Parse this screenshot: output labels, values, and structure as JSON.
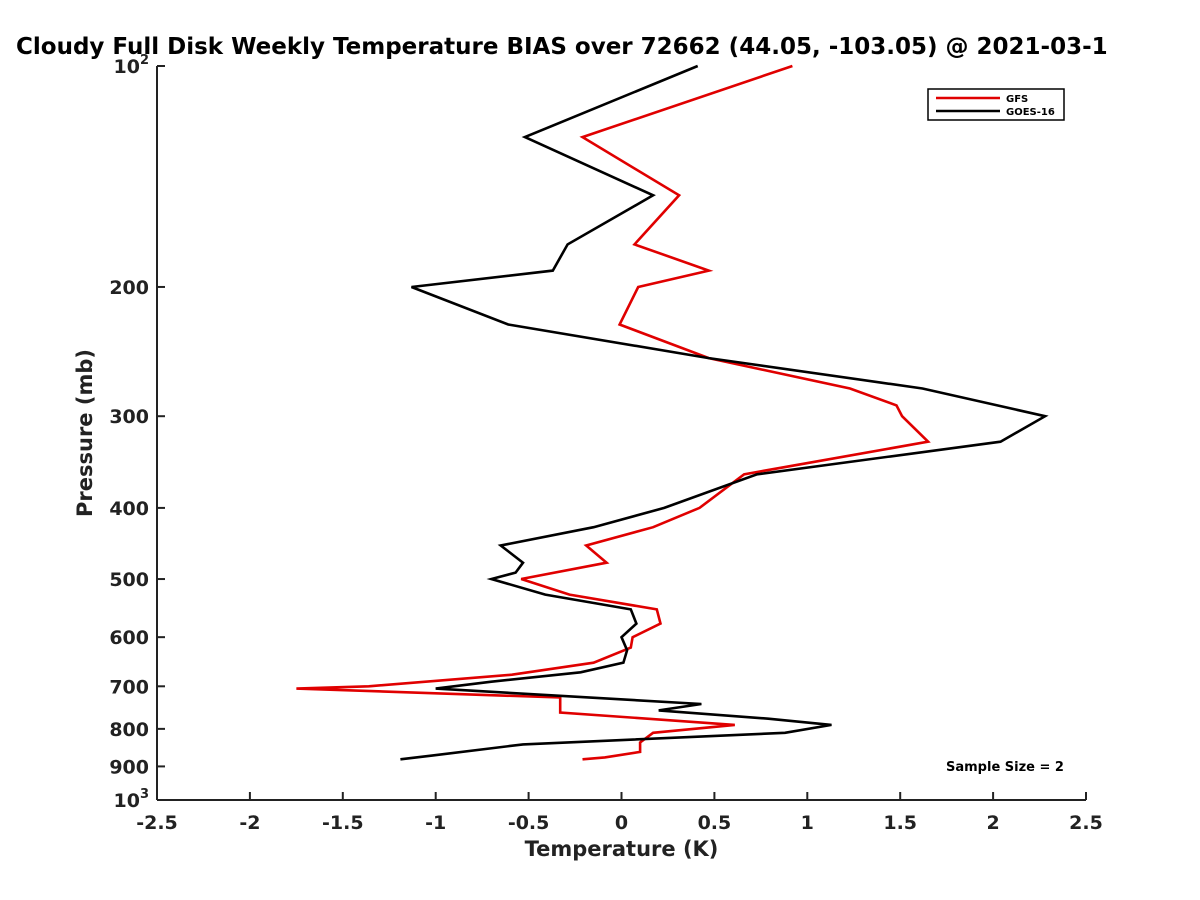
{
  "chart_data": {
    "type": "line",
    "title": "Cloudy Full Disk Weekly Temperature BIAS over 72662 (44.05, -103.05) @ 2021-03-1",
    "xlabel": "Temperature (K)",
    "ylabel": "Pressure (mb)",
    "xlim": [
      -2.5,
      2.5
    ],
    "ylim": [
      100,
      1000
    ],
    "y_scale": "log",
    "y_reversed": true,
    "grid": false,
    "legend_position": "top-right",
    "x_ticks": [
      "-2.5",
      "-2",
      "-1.5",
      "-1",
      "-0.5",
      "0",
      "0.5",
      "1",
      "1.5",
      "2",
      "2.5"
    ],
    "y_ticks": [
      {
        "value": 100,
        "base": "10",
        "exp": "2",
        "label": ""
      },
      {
        "value": 200,
        "label": "200"
      },
      {
        "value": 300,
        "label": "300"
      },
      {
        "value": 400,
        "label": "400"
      },
      {
        "value": 500,
        "label": "500"
      },
      {
        "value": 600,
        "label": "600"
      },
      {
        "value": 700,
        "label": "700"
      },
      {
        "value": 800,
        "label": "800"
      },
      {
        "value": 900,
        "label": "900"
      },
      {
        "value": 1000,
        "base": "10",
        "exp": "3",
        "label": ""
      }
    ],
    "series": [
      {
        "name": "GFS",
        "color": "#e00000",
        "points": [
          [
            0.92,
            100
          ],
          [
            -0.21,
            125
          ],
          [
            0.31,
            150
          ],
          [
            0.07,
            175
          ],
          [
            0.47,
            190
          ],
          [
            0.09,
            200
          ],
          [
            -0.01,
            225
          ],
          [
            0.47,
            250
          ],
          [
            1.23,
            275
          ],
          [
            1.48,
            290
          ],
          [
            1.51,
            300
          ],
          [
            1.65,
            325
          ],
          [
            0.66,
            360
          ],
          [
            0.42,
            400
          ],
          [
            0.17,
            425
          ],
          [
            -0.19,
            450
          ],
          [
            -0.08,
            475
          ],
          [
            -0.54,
            500
          ],
          [
            -0.28,
            525
          ],
          [
            0.19,
            550
          ],
          [
            0.21,
            575
          ],
          [
            0.06,
            600
          ],
          [
            0.05,
            620
          ],
          [
            -0.15,
            650
          ],
          [
            -0.59,
            675
          ],
          [
            -1.36,
            700
          ],
          [
            -1.75,
            705
          ],
          [
            -0.33,
            725
          ],
          [
            -0.33,
            760
          ],
          [
            0.61,
            790
          ],
          [
            0.17,
            810
          ],
          [
            0.1,
            835
          ],
          [
            0.1,
            860
          ],
          [
            -0.09,
            875
          ],
          [
            -0.21,
            880
          ]
        ]
      },
      {
        "name": "GOES-16",
        "color": "#000000",
        "points": [
          [
            0.41,
            100
          ],
          [
            -0.52,
            125
          ],
          [
            0.17,
            150
          ],
          [
            -0.29,
            175
          ],
          [
            -0.37,
            190
          ],
          [
            -1.13,
            200
          ],
          [
            -0.61,
            225
          ],
          [
            0.47,
            250
          ],
          [
            1.62,
            275
          ],
          [
            2.28,
            300
          ],
          [
            2.04,
            325
          ],
          [
            0.73,
            360
          ],
          [
            0.23,
            400
          ],
          [
            -0.15,
            425
          ],
          [
            -0.65,
            450
          ],
          [
            -0.53,
            475
          ],
          [
            -0.57,
            490
          ],
          [
            -0.7,
            500
          ],
          [
            -0.41,
            525
          ],
          [
            0.05,
            550
          ],
          [
            0.08,
            575
          ],
          [
            0.0,
            600
          ],
          [
            0.03,
            625
          ],
          [
            0.01,
            650
          ],
          [
            -0.22,
            670
          ],
          [
            -0.7,
            690
          ],
          [
            -1.0,
            705
          ],
          [
            0.43,
            740
          ],
          [
            0.2,
            755
          ],
          [
            0.79,
            775
          ],
          [
            1.13,
            790
          ],
          [
            0.88,
            810
          ],
          [
            -0.53,
            840
          ],
          [
            -1.02,
            870
          ],
          [
            -1.19,
            880
          ]
        ]
      }
    ],
    "annotation": "Sample Size = 2"
  }
}
